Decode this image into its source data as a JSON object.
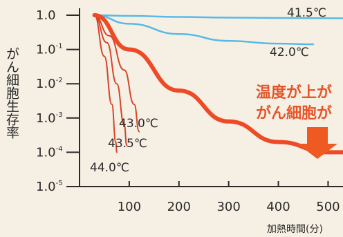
{
  "chart_data": {
    "type": "line",
    "ylabel": "がん細胞生存率",
    "xlabel": "加熱時間(分)",
    "x_ticks": [
      "100",
      "200",
      "300",
      "400",
      "500"
    ],
    "y_ticks": [
      {
        "base": "1.0",
        "exp": ""
      },
      {
        "base": "1.0",
        "exp": "-1"
      },
      {
        "base": "1.0",
        "exp": "-2"
      },
      {
        "base": "1.0",
        "exp": "-3"
      },
      {
        "base": "1.0",
        "exp": "-4"
      },
      {
        "base": "1.0",
        "exp": "-5"
      }
    ],
    "xlim": [
      0,
      530
    ],
    "y_log_range": [
      -5,
      0
    ],
    "y_scale": "log",
    "callout_lines": [
      "温度が上が",
      "がん細胞が"
    ],
    "colors": {
      "cool": "#58b9e8",
      "hot": "#ee4a26",
      "dark": "#d8432a",
      "callout": "#e8542a",
      "arrow": "#ef5a22"
    },
    "series": [
      {
        "name": "41.5℃",
        "color_key": "cool",
        "weight": "thin",
        "points": [
          [
            30,
            0
          ],
          [
            100,
            -0.02
          ],
          [
            200,
            -0.05
          ],
          [
            300,
            -0.07
          ],
          [
            400,
            -0.08
          ],
          [
            530,
            -0.09
          ]
        ]
      },
      {
        "name": "42.0℃",
        "color_key": "cool",
        "weight": "thin",
        "points": [
          [
            30,
            0
          ],
          [
            100,
            -0.25
          ],
          [
            200,
            -0.55
          ],
          [
            300,
            -0.75
          ],
          [
            400,
            -0.83
          ],
          [
            470,
            -0.85
          ]
        ]
      },
      {
        "name": "43.0℃",
        "color_key": "dark",
        "weight": "mid",
        "points": [
          [
            30,
            0
          ],
          [
            60,
            -0.6
          ],
          [
            90,
            -1.6
          ],
          [
            110,
            -2.6
          ],
          [
            120,
            -3.4
          ]
        ]
      },
      {
        "name": "43.5℃",
        "color_key": "dark",
        "weight": "mid",
        "points": [
          [
            30,
            0
          ],
          [
            55,
            -0.8
          ],
          [
            75,
            -2.0
          ],
          [
            90,
            -3.2
          ],
          [
            95,
            -3.8
          ]
        ]
      },
      {
        "name": "44.0℃",
        "color_key": "dark",
        "weight": "mid",
        "points": [
          [
            30,
            0
          ],
          [
            50,
            -1.2
          ],
          [
            65,
            -2.6
          ],
          [
            73,
            -3.7
          ],
          [
            75,
            -4.0
          ]
        ]
      },
      {
        "name": "",
        "color_key": "hot",
        "weight": "thick",
        "points": [
          [
            30,
            0
          ],
          [
            100,
            -1.0
          ],
          [
            200,
            -2.2
          ],
          [
            300,
            -3.1
          ],
          [
            400,
            -3.7
          ],
          [
            500,
            -4.0
          ],
          [
            530,
            -4.0
          ]
        ]
      }
    ],
    "series_labels": [
      "41.5℃",
      "42.0℃",
      "43.0℃",
      "43.5℃",
      "44.0℃"
    ]
  }
}
